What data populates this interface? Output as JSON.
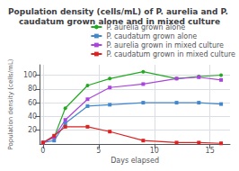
{
  "chart_data": {
    "type": "line",
    "title": "Population density (cells/mL) of P. aurelia and P. caudatum grown alone and in mixed culture",
    "x_label": "Days elapsed",
    "y_label": "Population density (cells/mL)",
    "x": [
      0,
      1,
      2,
      4,
      6,
      9,
      12,
      14,
      16
    ],
    "series": [
      {
        "name": "P. aurelia grown alone",
        "color": "#22aa22",
        "marker": "circle",
        "values": [
          2,
          10,
          52,
          85,
          95,
          105,
          95,
          98,
          100
        ]
      },
      {
        "name": "P. caudatum grown alone",
        "color": "#4488cc",
        "marker": "square",
        "values": [
          2,
          5,
          30,
          55,
          57,
          60,
          60,
          60,
          58
        ]
      },
      {
        "name": "P. aurelia grown in mixed culture",
        "color": "#aa44dd",
        "marker": "square",
        "values": [
          2,
          10,
          35,
          65,
          82,
          87,
          95,
          97,
          93
        ]
      },
      {
        "name": "P. caudatum grown in mixed culture",
        "color": "#dd2222",
        "marker": "square",
        "values": [
          2,
          12,
          25,
          25,
          18,
          5,
          2,
          2,
          1
        ]
      }
    ],
    "xlim": [
      -0.3,
      16.8
    ],
    "ylim": [
      0,
      115
    ],
    "xticks": [
      0,
      5,
      10,
      15
    ],
    "yticks": [
      20,
      40,
      60,
      80,
      100
    ],
    "grid": true,
    "legend": "upper right"
  }
}
